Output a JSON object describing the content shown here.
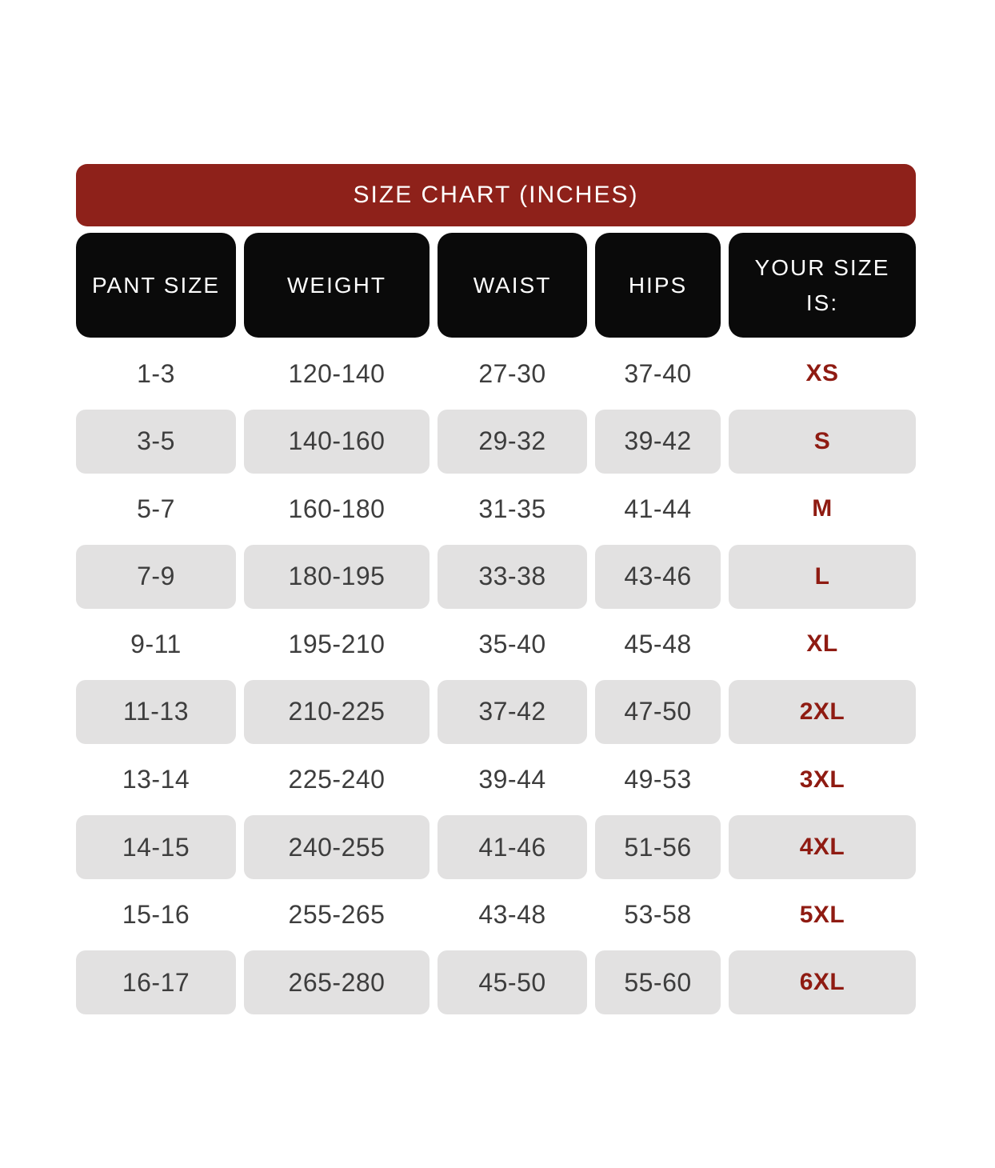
{
  "chart_data": {
    "type": "table",
    "title": "SIZE CHART (INCHES)",
    "units": "inches",
    "columns": [
      "PANT SIZE",
      "WEIGHT",
      "WAIST",
      "HIPS",
      "YOUR SIZE IS:"
    ],
    "rows": [
      {
        "pant_size": "1-3",
        "weight": "120-140",
        "waist": "27-30",
        "hips": "37-40",
        "your_size": "XS"
      },
      {
        "pant_size": "3-5",
        "weight": "140-160",
        "waist": "29-32",
        "hips": "39-42",
        "your_size": "S"
      },
      {
        "pant_size": "5-7",
        "weight": "160-180",
        "waist": "31-35",
        "hips": "41-44",
        "your_size": "M"
      },
      {
        "pant_size": "7-9",
        "weight": "180-195",
        "waist": "33-38",
        "hips": "43-46",
        "your_size": "L"
      },
      {
        "pant_size": "9-11",
        "weight": "195-210",
        "waist": "35-40",
        "hips": "45-48",
        "your_size": "XL"
      },
      {
        "pant_size": "11-13",
        "weight": "210-225",
        "waist": "37-42",
        "hips": "47-50",
        "your_size": "2XL"
      },
      {
        "pant_size": "13-14",
        "weight": "225-240",
        "waist": "39-44",
        "hips": "49-53",
        "your_size": "3XL"
      },
      {
        "pant_size": "14-15",
        "weight": "240-255",
        "waist": "41-46",
        "hips": "51-56",
        "your_size": "4XL"
      },
      {
        "pant_size": "15-16",
        "weight": "255-265",
        "waist": "43-48",
        "hips": "53-58",
        "your_size": "5XL"
      },
      {
        "pant_size": "16-17",
        "weight": "265-280",
        "waist": "45-50",
        "hips": "55-60",
        "your_size": "6XL"
      }
    ],
    "layout_hints": {
      "alternating_rows": "even rows shaded gray with rounded cells",
      "size_column_style": "bold maroon"
    }
  },
  "colors": {
    "banner_red": "#8E211A",
    "size_label_red": "#8F1B12",
    "header_black": "#0A0A0A",
    "alt_row_gray": "#E2E1E1",
    "data_text_gray": "#3D3D3D",
    "background": "#FFFFFF"
  }
}
